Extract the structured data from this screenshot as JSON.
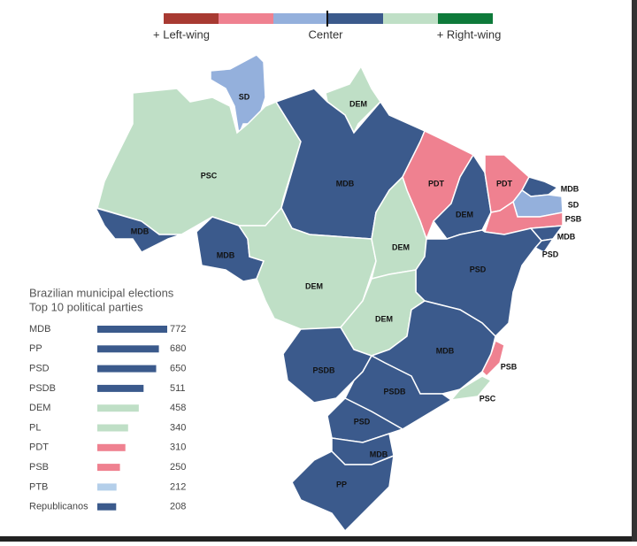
{
  "scale": {
    "colors": [
      "#a83a32",
      "#ef8190",
      "#94b0dc",
      "#3b5a8c",
      "#bfdfc6",
      "#0e7a3a"
    ],
    "labels": [
      "+ Left-wing",
      "Center",
      "+ Right-wing"
    ]
  },
  "map": {
    "regions": [
      "SD",
      "DEM",
      "PSC",
      "MDB",
      "MDB",
      "MDB",
      "DEM",
      "PDT",
      "DEM",
      "DEM",
      "PDT",
      "MDB",
      "SD",
      "PSB",
      "MDB",
      "PSD",
      "PSD",
      "DEM",
      "MDB",
      "PSB",
      "PSC",
      "PSDB",
      "PSDB",
      "PSD",
      "MDB",
      "PP"
    ]
  },
  "chart_data": {
    "type": "bar",
    "orientation": "horizontal",
    "title": "Brazilian municipal elections",
    "subtitle": "Top 10 political parties",
    "categories": [
      "MDB",
      "PP",
      "PSD",
      "PSDB",
      "DEM",
      "PL",
      "PDT",
      "PSB",
      "PTB",
      "Republicanos"
    ],
    "values": [
      772,
      680,
      650,
      511,
      458,
      340,
      310,
      250,
      212,
      208
    ],
    "colors": [
      "#3b5a8c",
      "#3b5a8c",
      "#3b5a8c",
      "#3b5a8c",
      "#bfdfc6",
      "#bfdfc6",
      "#ef8190",
      "#ef8190",
      "#b4cfea",
      "#3b5a8c"
    ]
  }
}
